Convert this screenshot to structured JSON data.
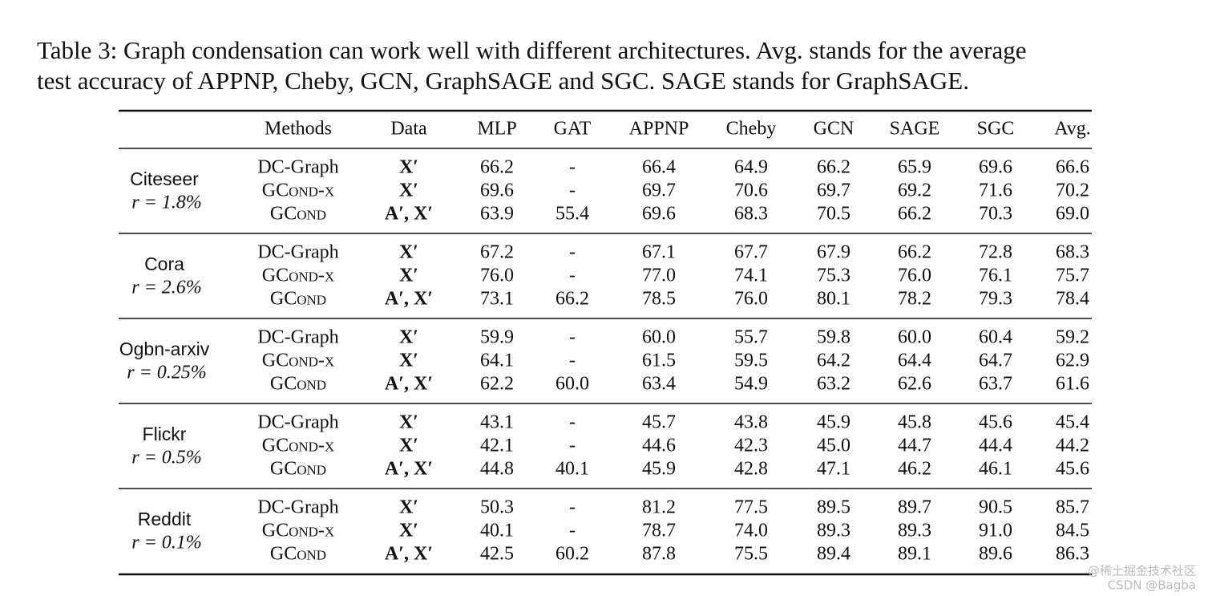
{
  "caption": [
    "Table 3: Graph condensation can work well with different architectures. Avg. stands for the average",
    "test accuracy of APPNP, Cheby, GCN, GraphSAGE and SGC. SAGE stands for GraphSAGE."
  ],
  "table": {
    "header": [
      "Methods",
      "Data",
      "MLP",
      "GAT",
      "APPNP",
      "Cheby",
      "GCN",
      "SAGE",
      "SGC",
      "Avg."
    ],
    "groups": [
      {
        "dataset": "Citeseer",
        "ratio": "r = 1.8%",
        "rows": [
          [
            "DC-Graph",
            "X′",
            "66.2",
            "-",
            "66.4",
            "64.9",
            "66.2",
            "65.9",
            "69.6",
            "66.6"
          ],
          [
            "GCond-x",
            "X′",
            "69.6",
            "-",
            "69.7",
            "70.6",
            "69.7",
            "69.2",
            "71.6",
            "70.2"
          ],
          [
            "GCond",
            "A′, X′",
            "63.9",
            "55.4",
            "69.6",
            "68.3",
            "70.5",
            "66.2",
            "70.3",
            "69.0"
          ]
        ]
      },
      {
        "dataset": "Cora",
        "ratio": "r = 2.6%",
        "rows": [
          [
            "DC-Graph",
            "X′",
            "67.2",
            "-",
            "67.1",
            "67.7",
            "67.9",
            "66.2",
            "72.8",
            "68.3"
          ],
          [
            "GCond-x",
            "X′",
            "76.0",
            "-",
            "77.0",
            "74.1",
            "75.3",
            "76.0",
            "76.1",
            "75.7"
          ],
          [
            "GCond",
            "A′, X′",
            "73.1",
            "66.2",
            "78.5",
            "76.0",
            "80.1",
            "78.2",
            "79.3",
            "78.4"
          ]
        ]
      },
      {
        "dataset": "Ogbn-arxiv",
        "ratio": "r = 0.25%",
        "rows": [
          [
            "DC-Graph",
            "X′",
            "59.9",
            "-",
            "60.0",
            "55.7",
            "59.8",
            "60.0",
            "60.4",
            "59.2"
          ],
          [
            "GCond-x",
            "X′",
            "64.1",
            "-",
            "61.5",
            "59.5",
            "64.2",
            "64.4",
            "64.7",
            "62.9"
          ],
          [
            "GCond",
            "A′, X′",
            "62.2",
            "60.0",
            "63.4",
            "54.9",
            "63.2",
            "62.6",
            "63.7",
            "61.6"
          ]
        ]
      },
      {
        "dataset": "Flickr",
        "ratio": "r = 0.5%",
        "rows": [
          [
            "DC-Graph",
            "X′",
            "43.1",
            "-",
            "45.7",
            "43.8",
            "45.9",
            "45.8",
            "45.6",
            "45.4"
          ],
          [
            "GCond-x",
            "X′",
            "42.1",
            "-",
            "44.6",
            "42.3",
            "45.0",
            "44.7",
            "44.4",
            "44.2"
          ],
          [
            "GCond",
            "A′, X′",
            "44.8",
            "40.1",
            "45.9",
            "42.8",
            "47.1",
            "46.2",
            "46.1",
            "45.6"
          ]
        ]
      },
      {
        "dataset": "Reddit",
        "ratio": "r = 0.1%",
        "rows": [
          [
            "DC-Graph",
            "X′",
            "50.3",
            "-",
            "81.2",
            "77.5",
            "89.5",
            "89.7",
            "90.5",
            "85.7"
          ],
          [
            "GCond-x",
            "X′",
            "40.1",
            "-",
            "78.7",
            "74.0",
            "89.3",
            "89.3",
            "91.0",
            "84.5"
          ],
          [
            "GCond",
            "A′, X′",
            "42.5",
            "60.2",
            "87.8",
            "75.5",
            "89.4",
            "89.1",
            "89.6",
            "86.3"
          ]
        ]
      }
    ]
  },
  "watermark": [
    "@稀土掘金技术社区",
    "CSDN @Bagba"
  ]
}
